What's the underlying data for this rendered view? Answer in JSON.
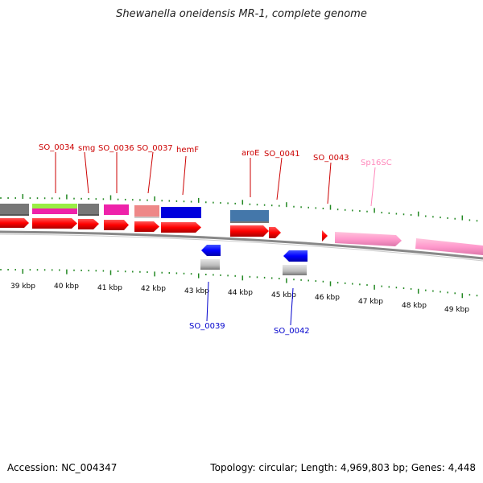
{
  "map": {
    "title": "Shewanella oneidensis MR-1, complete genome",
    "accession": "Accession: NC_004347",
    "summary": "Topology: circular; Length: 4,969,803 bp; Genes: 4,448"
  },
  "scale": {
    "tick_labels": [
      "39 kbp",
      "40 kbp",
      "41 kbp",
      "42 kbp",
      "43 kbp",
      "44 kbp",
      "45 kbp",
      "46 kbp",
      "47 kbp",
      "48 kbp",
      "49 kbp"
    ]
  },
  "features": {
    "forward_labels": [
      {
        "name": "SO_0034",
        "color": "#cc0000"
      },
      {
        "name": "smg",
        "color": "#cc0000"
      },
      {
        "name": "SO_0036",
        "color": "#cc0000"
      },
      {
        "name": "SO_0037",
        "color": "#cc0000"
      },
      {
        "name": "hemF",
        "color": "#cc0000"
      },
      {
        "name": "aroE",
        "color": "#cc0000"
      },
      {
        "name": "SO_0041",
        "color": "#cc0000"
      },
      {
        "name": "SO_0043",
        "color": "#cc0000"
      },
      {
        "name": "Sp16SC",
        "color": "#ff88bb"
      }
    ],
    "reverse_labels": [
      {
        "name": "SO_0039",
        "color": "#0000cc"
      },
      {
        "name": "SO_0042",
        "color": "#0000cc"
      }
    ]
  },
  "colors": {
    "cds": "#ff0000",
    "rrna": "#ff99cc",
    "reverse_cds": "#0000ff",
    "cog_gray": "#777777",
    "cog_green": "#99ee44",
    "cog_magenta": "#ee22aa",
    "cog_salmon": "#ee8888",
    "cog_blue": "#0000dd",
    "cog_steel": "#4477aa",
    "backbone": "#888888",
    "ticks": "#228822"
  }
}
